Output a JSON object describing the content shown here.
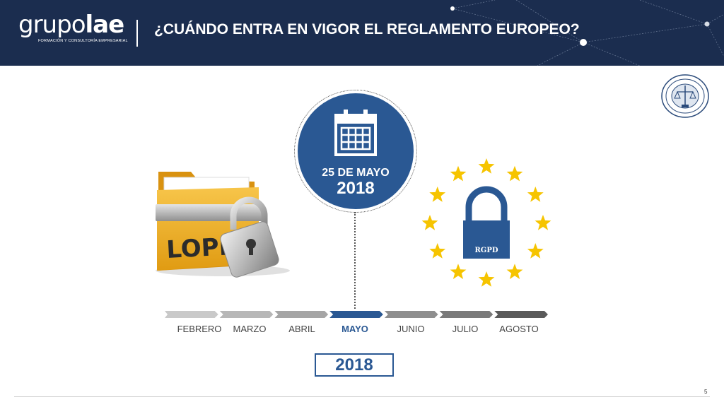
{
  "header": {
    "logo_thin": "grupo",
    "logo_bold": "lae",
    "logo_subtitle": "FORMACIÓN Y CONSULTORÍA EMPRESARIAL",
    "title": "¿CUÁNDO ENTRA EN VIGOR EL REGLAMENTO EUROPEO?"
  },
  "badge": {
    "date": "25 DE MAYO",
    "year": "2018"
  },
  "folder": {
    "label": "LOPD"
  },
  "eu_lock": {
    "label": "RGPD"
  },
  "timeline": {
    "months": [
      "FEBRERO",
      "MARZO",
      "ABRIL",
      "MAYO",
      "JUNIO",
      "JULIO",
      "AGOSTO"
    ],
    "active_month": "MAYO",
    "year": "2018"
  },
  "footer": {
    "page_number": "5"
  },
  "colors": {
    "header_bg": "#1b2d4f",
    "accent_blue": "#2a5893",
    "folder_yellow": "#f0b323",
    "eu_star": "#f6c400"
  },
  "icons": [
    "calendar-icon",
    "padlock-icon",
    "eu-stars-icon",
    "seal-icon"
  ]
}
